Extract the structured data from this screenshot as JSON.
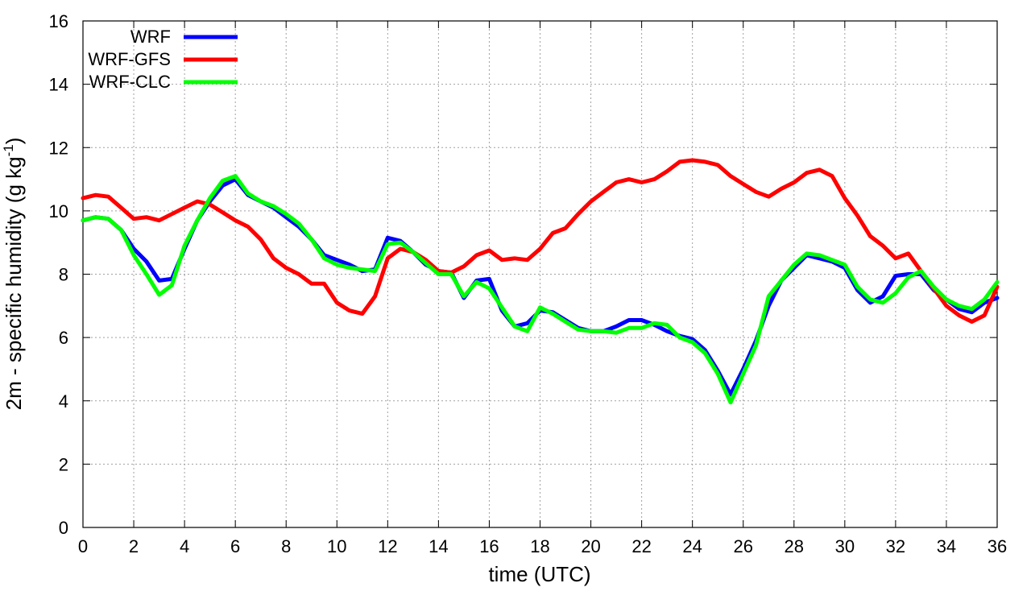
{
  "chart_data": {
    "type": "line",
    "title": "",
    "xlabel": "time (UTC)",
    "ylabel_main": "2m - specific humidity (g kg",
    "ylabel_sup": "-1",
    "ylabel_end": ")",
    "xlim": [
      0,
      36
    ],
    "ylim": [
      0,
      16
    ],
    "xticks": [
      0,
      2,
      4,
      6,
      8,
      10,
      12,
      14,
      16,
      18,
      20,
      22,
      24,
      26,
      28,
      30,
      32,
      34,
      36
    ],
    "yticks": [
      0,
      2,
      4,
      6,
      8,
      10,
      12,
      14,
      16
    ],
    "grid": true,
    "legend_position": "top-left",
    "x": [
      0,
      0.5,
      1,
      1.5,
      2,
      2.5,
      3,
      3.5,
      4,
      4.5,
      5,
      5.5,
      6,
      6.5,
      7,
      7.5,
      8,
      8.5,
      9,
      9.5,
      10,
      10.5,
      11,
      11.5,
      12,
      12.5,
      13,
      13.5,
      14,
      14.5,
      15,
      15.5,
      16,
      16.5,
      17,
      17.5,
      18,
      18.5,
      19,
      19.5,
      20,
      20.5,
      21,
      21.5,
      22,
      22.5,
      23,
      23.5,
      24,
      24.5,
      25,
      25.5,
      26,
      26.5,
      27,
      27.5,
      28,
      28.5,
      29,
      29.5,
      30,
      30.5,
      31,
      31.5,
      32,
      32.5,
      33,
      33.5,
      34,
      34.5,
      35,
      35.5,
      36
    ],
    "series": [
      {
        "name": "WRF",
        "color": "#0000ff",
        "values": [
          9.7,
          9.8,
          9.75,
          9.4,
          8.8,
          8.4,
          7.8,
          7.85,
          8.8,
          9.7,
          10.3,
          10.8,
          11.0,
          10.5,
          10.3,
          10.1,
          9.8,
          9.5,
          9.1,
          8.6,
          8.45,
          8.3,
          8.1,
          8.15,
          9.15,
          9.05,
          8.7,
          8.3,
          8.1,
          8.05,
          7.25,
          7.8,
          7.85,
          6.85,
          6.35,
          6.45,
          6.85,
          6.8,
          6.55,
          6.3,
          6.2,
          6.2,
          6.35,
          6.55,
          6.55,
          6.4,
          6.2,
          6.05,
          5.95,
          5.6,
          4.95,
          4.2,
          5.0,
          5.9,
          7.0,
          7.8,
          8.2,
          8.6,
          8.5,
          8.4,
          8.2,
          7.5,
          7.1,
          7.3,
          7.95,
          8.0,
          8.0,
          7.5,
          7.2,
          6.9,
          6.8,
          7.1,
          7.25
        ]
      },
      {
        "name": "WRF-GFS",
        "color": "#ff0000",
        "values": [
          10.4,
          10.5,
          10.45,
          10.1,
          9.75,
          9.8,
          9.7,
          9.9,
          10.1,
          10.3,
          10.2,
          9.95,
          9.7,
          9.5,
          9.1,
          8.5,
          8.2,
          8.0,
          7.7,
          7.7,
          7.1,
          6.85,
          6.75,
          7.3,
          8.5,
          8.8,
          8.7,
          8.45,
          8.1,
          8.05,
          8.25,
          8.6,
          8.75,
          8.45,
          8.5,
          8.45,
          8.8,
          9.3,
          9.45,
          9.9,
          10.3,
          10.6,
          10.9,
          11.0,
          10.9,
          11.0,
          11.25,
          11.55,
          11.6,
          11.55,
          11.45,
          11.1,
          10.85,
          10.6,
          10.45,
          10.7,
          10.9,
          11.2,
          11.3,
          11.1,
          10.4,
          9.85,
          9.2,
          8.9,
          8.5,
          8.65,
          8.1,
          7.55,
          7.0,
          6.7,
          6.5,
          6.7,
          7.6
        ]
      },
      {
        "name": "WRF-CLC",
        "color": "#00ff00",
        "values": [
          9.7,
          9.8,
          9.75,
          9.4,
          8.6,
          8.0,
          7.35,
          7.65,
          8.9,
          9.7,
          10.4,
          10.95,
          11.1,
          10.55,
          10.3,
          10.15,
          9.9,
          9.6,
          9.1,
          8.5,
          8.3,
          8.2,
          8.15,
          8.1,
          8.95,
          9.0,
          8.7,
          8.35,
          8.0,
          8.0,
          7.3,
          7.75,
          7.55,
          6.95,
          6.35,
          6.2,
          6.95,
          6.75,
          6.5,
          6.25,
          6.2,
          6.2,
          6.15,
          6.3,
          6.3,
          6.45,
          6.4,
          6.0,
          5.85,
          5.5,
          4.85,
          3.95,
          4.85,
          5.75,
          7.3,
          7.8,
          8.3,
          8.65,
          8.6,
          8.45,
          8.3,
          7.6,
          7.2,
          7.1,
          7.4,
          7.9,
          8.1,
          7.6,
          7.2,
          7.0,
          6.9,
          7.2,
          7.75
        ]
      }
    ]
  }
}
